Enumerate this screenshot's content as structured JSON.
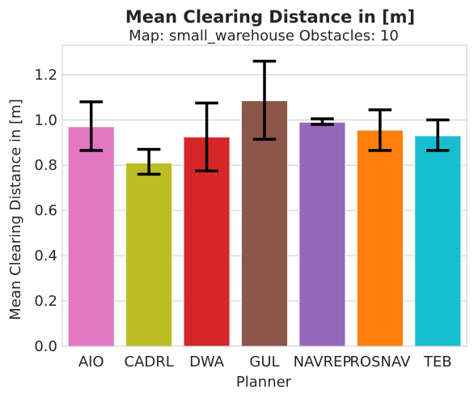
{
  "chart_data": {
    "type": "bar",
    "title": "Mean Clearing Distance in [m]",
    "subtitle": "Map: small_warehouse Obstacles: 10",
    "xlabel": "Planner",
    "ylabel": "Mean Clearing Distance in [m]",
    "categories": [
      "AIO",
      "CADRL",
      "DWA",
      "GUL",
      "NAVREP",
      "ROSNAV",
      "TEB"
    ],
    "values": [
      0.97,
      0.81,
      0.925,
      1.085,
      0.99,
      0.955,
      0.93
    ],
    "error_low": [
      0.865,
      0.76,
      0.775,
      0.915,
      0.98,
      0.865,
      0.865
    ],
    "error_high": [
      1.08,
      0.87,
      1.075,
      1.26,
      1.005,
      1.045,
      1.0
    ],
    "colors": [
      "#e377c2",
      "#bcbd22",
      "#d62728",
      "#8c564b",
      "#9467bd",
      "#ff7f0e",
      "#17becf"
    ],
    "ylim": [
      0,
      1.33
    ],
    "yticks": [
      0.0,
      0.2,
      0.4,
      0.6,
      0.8,
      1.0,
      1.2
    ],
    "ytick_labels": [
      "0.0",
      "0.2",
      "0.4",
      "0.6",
      "0.8",
      "1.0",
      "1.2"
    ],
    "grid": true,
    "grid_axis": "y"
  }
}
